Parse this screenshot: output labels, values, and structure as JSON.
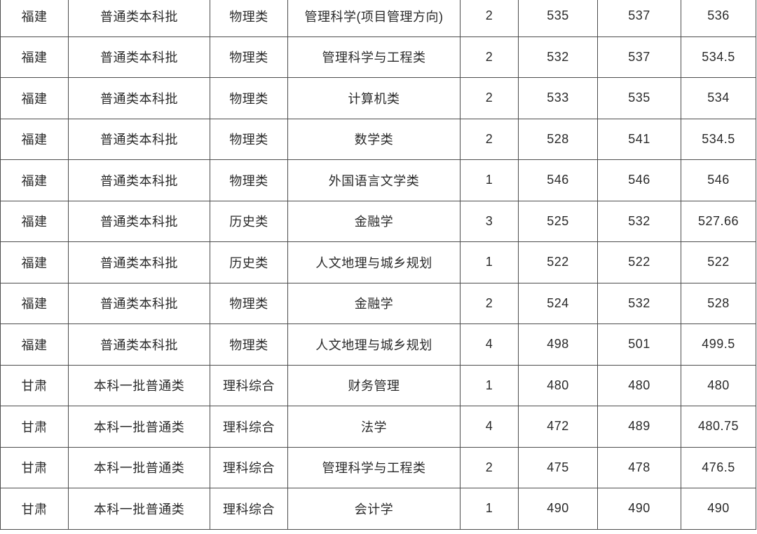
{
  "table": {
    "rows": [
      [
        "福建",
        "普通类本科批",
        "物理类",
        "管理科学(项目管理方向)",
        "2",
        "535",
        "537",
        "536"
      ],
      [
        "福建",
        "普通类本科批",
        "物理类",
        "管理科学与工程类",
        "2",
        "532",
        "537",
        "534.5"
      ],
      [
        "福建",
        "普通类本科批",
        "物理类",
        "计算机类",
        "2",
        "533",
        "535",
        "534"
      ],
      [
        "福建",
        "普通类本科批",
        "物理类",
        "数学类",
        "2",
        "528",
        "541",
        "534.5"
      ],
      [
        "福建",
        "普通类本科批",
        "物理类",
        "外国语言文学类",
        "1",
        "546",
        "546",
        "546"
      ],
      [
        "福建",
        "普通类本科批",
        "历史类",
        "金融学",
        "3",
        "525",
        "532",
        "527.66"
      ],
      [
        "福建",
        "普通类本科批",
        "历史类",
        "人文地理与城乡规划",
        "1",
        "522",
        "522",
        "522"
      ],
      [
        "福建",
        "普通类本科批",
        "物理类",
        "金融学",
        "2",
        "524",
        "532",
        "528"
      ],
      [
        "福建",
        "普通类本科批",
        "物理类",
        "人文地理与城乡规划",
        "4",
        "498",
        "501",
        "499.5"
      ],
      [
        "甘肃",
        "本科一批普通类",
        "理科综合",
        "财务管理",
        "1",
        "480",
        "480",
        "480"
      ],
      [
        "甘肃",
        "本科一批普通类",
        "理科综合",
        "法学",
        "4",
        "472",
        "489",
        "480.75"
      ],
      [
        "甘肃",
        "本科一批普通类",
        "理科综合",
        "管理科学与工程类",
        "2",
        "475",
        "478",
        "476.5"
      ],
      [
        "甘肃",
        "本科一批普通类",
        "理科综合",
        "会计学",
        "1",
        "490",
        "490",
        "490"
      ]
    ]
  },
  "colors": {
    "border": "#4d4d4d",
    "text": "#2a2a2a",
    "background": "#ffffff"
  }
}
